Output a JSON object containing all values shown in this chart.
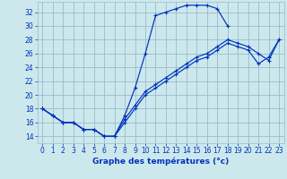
{
  "xlabel": "Graphe des températures (°c)",
  "bg_color": "#cce8ec",
  "grid_color": "#99bbcc",
  "line_color": "#0033bb",
  "xlim": [
    -0.5,
    23.5
  ],
  "ylim": [
    13.0,
    33.5
  ],
  "ytick_vals": [
    14,
    16,
    18,
    20,
    22,
    24,
    26,
    28,
    30,
    32
  ],
  "xtick_vals": [
    0,
    1,
    2,
    3,
    4,
    5,
    6,
    7,
    8,
    9,
    10,
    11,
    12,
    13,
    14,
    15,
    16,
    17,
    18,
    19,
    20,
    21,
    22,
    23
  ],
  "series": [
    {
      "x": [
        0,
        1,
        2,
        3,
        4,
        5,
        6,
        7,
        8,
        9,
        10,
        11,
        12,
        13,
        14,
        15,
        16,
        17,
        18
      ],
      "y": [
        18,
        17,
        16,
        16,
        15,
        15,
        14,
        14,
        17,
        21,
        26,
        31.5,
        32,
        32.5,
        33,
        33,
        33,
        32.5,
        30
      ]
    },
    {
      "x": [
        0,
        1,
        2,
        3,
        4,
        5,
        6,
        7,
        8,
        9,
        10,
        11,
        12,
        13,
        14,
        15,
        16,
        17,
        18,
        19,
        20,
        21,
        22,
        23
      ],
      "y": [
        18,
        17,
        16,
        16,
        15,
        15,
        14,
        14,
        16.5,
        18.5,
        20.5,
        21.5,
        22.5,
        23.5,
        24.5,
        25.5,
        26,
        27,
        28,
        27.5,
        27,
        26,
        25,
        28
      ]
    },
    {
      "x": [
        0,
        1,
        2,
        3,
        4,
        5,
        6,
        7,
        8,
        9,
        10,
        11,
        12,
        13,
        14,
        15,
        16,
        17,
        18,
        19,
        20,
        21,
        22,
        23
      ],
      "y": [
        18,
        17,
        16,
        16,
        15,
        15,
        14,
        14,
        16,
        18,
        20,
        21,
        22,
        23,
        24,
        25,
        25.5,
        26.5,
        27.5,
        27,
        26.5,
        24.5,
        25.5,
        28
      ]
    }
  ]
}
